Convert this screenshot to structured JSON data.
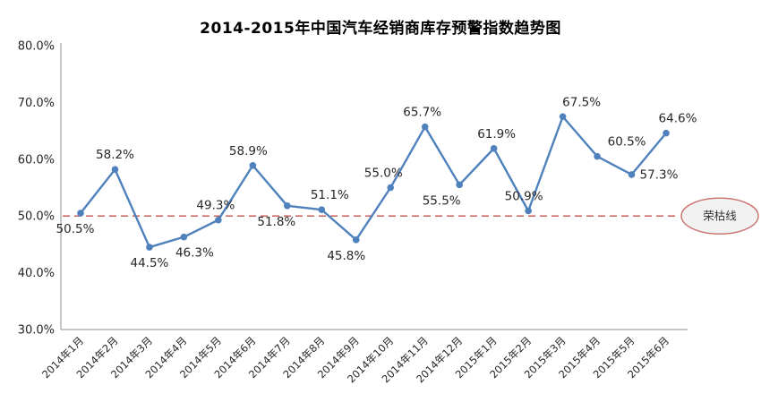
{
  "chart_data": {
    "type": "line",
    "title": "2014-2015年中国汽车经销商库存预警指数趋势图",
    "categories": [
      "2014年1月",
      "2014年2月",
      "2014年3月",
      "2014年4月",
      "2014年5月",
      "2014年6月",
      "2014年7月",
      "2014年8月",
      "2014年9月",
      "2014年10月",
      "2014年11月",
      "2014年12月",
      "2015年1月",
      "2015年2月",
      "2015年3月",
      "2015年4月",
      "2015年5月",
      "2015年6月"
    ],
    "values": [
      50.5,
      58.2,
      44.5,
      46.3,
      49.3,
      58.9,
      51.8,
      51.1,
      45.8,
      55.0,
      65.7,
      55.5,
      61.9,
      50.9,
      67.5,
      60.5,
      57.3,
      64.6
    ],
    "point_labels": [
      "50.5%",
      "58.2%",
      "44.5%",
      "46.3%",
      "49.3%",
      "58.9%",
      "51.8%",
      "51.1%",
      "45.8%",
      "55.0%",
      "65.7%",
      "55.5%",
      "61.9%",
      "50.9%",
      "67.5%",
      "60.5%",
      "57.3%",
      "64.6%"
    ],
    "label_placement": [
      {
        "pos": "below",
        "dx": -6
      },
      {
        "pos": "above",
        "dx": 0
      },
      {
        "pos": "below",
        "dx": 0
      },
      {
        "pos": "below",
        "dx": 12
      },
      {
        "pos": "above",
        "dx": -3
      },
      {
        "pos": "above",
        "dx": -5
      },
      {
        "pos": "below",
        "dx": -12
      },
      {
        "pos": "above",
        "dx": 9
      },
      {
        "pos": "below",
        "dx": -11
      },
      {
        "pos": "above",
        "dx": -8
      },
      {
        "pos": "above",
        "dx": -3
      },
      {
        "pos": "below",
        "dx": -20
      },
      {
        "pos": "above",
        "dx": 3
      },
      {
        "pos": "above",
        "dx": -5
      },
      {
        "pos": "above",
        "dx": 21
      },
      {
        "pos": "above",
        "dx": 33
      },
      {
        "pos": "right",
        "dx": 9
      },
      {
        "pos": "above",
        "dx": 13
      }
    ],
    "xlabel": "",
    "ylabel": "",
    "ylim": [
      30,
      80
    ],
    "ytick_values": [
      80,
      70,
      60,
      50,
      40,
      30
    ],
    "ytick_labels": [
      "80.0%",
      "70.0%",
      "60.0%",
      "50.0%",
      "40.0%",
      "30.0%"
    ],
    "grid": false,
    "legend": "none",
    "reference_line": {
      "value": 50,
      "label": "荣枯线",
      "style": "dashed"
    },
    "colors": {
      "line": "#4F81BD",
      "marker": "#4F81BD",
      "reference": "#C0504D",
      "badge_fill": "#F2F2F2",
      "badge_border": "#C86F6C",
      "axis": "#8C8C8C",
      "text": "#262626",
      "title": "#000000"
    }
  }
}
